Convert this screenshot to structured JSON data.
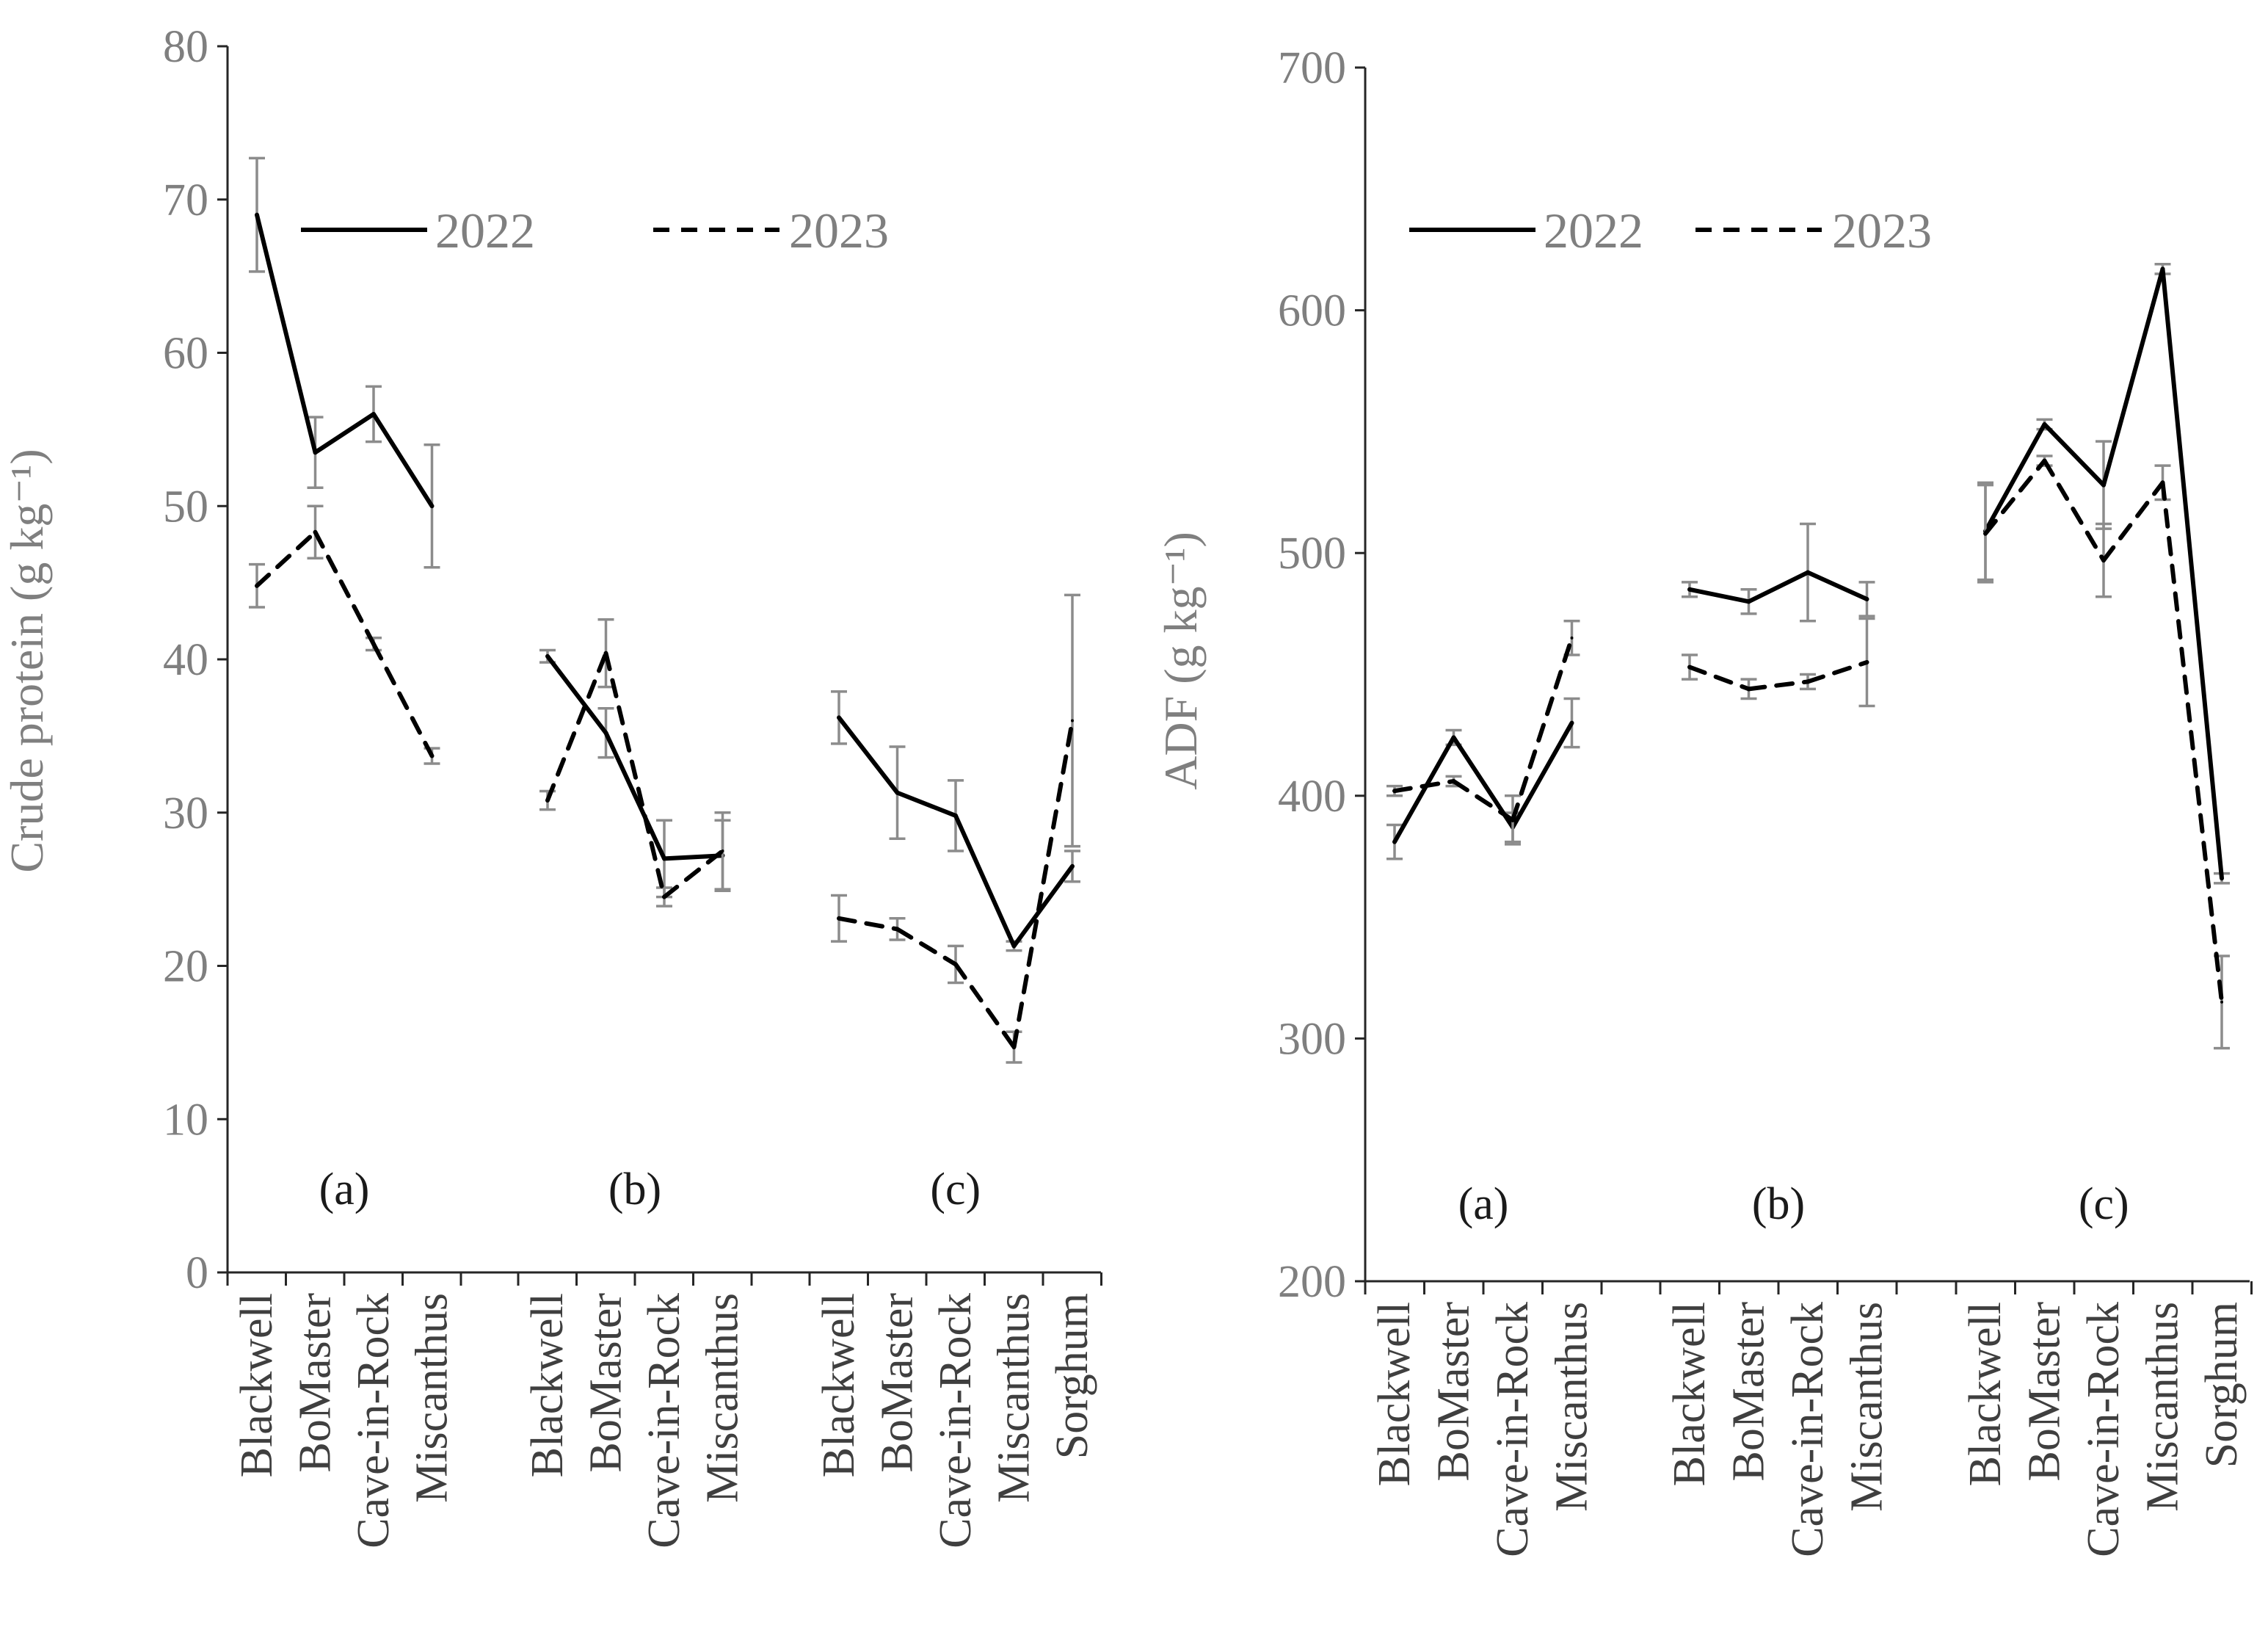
{
  "chart_data": [
    {
      "type": "line",
      "title": "",
      "ylabel": "Crude protein (g kg⁻¹)",
      "xlabel": "",
      "ylim": [
        0,
        80
      ],
      "yticks": [
        0,
        10,
        20,
        30,
        40,
        50,
        60,
        70,
        80
      ],
      "legend_position": "top",
      "groups": [
        {
          "label": "(a)",
          "categories": [
            "Blackwell",
            "BoMaster",
            "Cave-in-Rock",
            "Miscanthus"
          ],
          "series": [
            {
              "name": "2022",
              "style": "solid",
              "values": [
                69,
                53.5,
                56,
                50
              ],
              "errors": [
                3.7,
                2.3,
                1.8,
                4
              ]
            },
            {
              "name": "2023",
              "style": "dashed",
              "values": [
                44.8,
                48.3,
                41,
                33.7
              ],
              "errors": [
                1.4,
                1.7,
                0.4,
                0.5
              ]
            }
          ]
        },
        {
          "label": "(b)",
          "categories": [
            "Blackwell",
            "BoMaster",
            "Cave-in-Rock",
            "Miscanthus"
          ],
          "series": [
            {
              "name": "2022",
              "style": "solid",
              "values": [
                40.2,
                35.2,
                27,
                27.2
              ],
              "errors": [
                0.4,
                1.6,
                2.5,
                2.3
              ]
            },
            {
              "name": "2023",
              "style": "dashed",
              "values": [
                30.8,
                40.4,
                24.5,
                27.5
              ],
              "errors": [
                0.6,
                2.2,
                0.6,
                2.5
              ]
            }
          ]
        },
        {
          "label": "(c)",
          "categories": [
            "Blackwell",
            "BoMaster",
            "Cave-in-Rock",
            "Miscanthus",
            "Sorghum"
          ],
          "series": [
            {
              "name": "2022",
              "style": "solid",
              "values": [
                36.2,
                31.3,
                29.8,
                21.3,
                26.5
              ],
              "errors": [
                1.7,
                3,
                2.3,
                0.3,
                1
              ]
            },
            {
              "name": "2023",
              "style": "dashed",
              "values": [
                23.1,
                22.4,
                20.1,
                14.7,
                36
              ],
              "errors": [
                1.5,
                0.7,
                1.2,
                1,
                8.2
              ]
            }
          ]
        }
      ]
    },
    {
      "type": "line",
      "title": "",
      "ylabel": "ADF (g kg⁻¹)",
      "xlabel": "",
      "ylim": [
        200,
        700
      ],
      "yticks": [
        200,
        300,
        400,
        500,
        600,
        700
      ],
      "legend_position": "top",
      "groups": [
        {
          "label": "(a)",
          "categories": [
            "Blackwell",
            "BoMaster",
            "Cave-in-Rock",
            "Miscanthus"
          ],
          "series": [
            {
              "name": "2022",
              "style": "solid",
              "values": [
                381,
                424,
                387,
                430
              ],
              "errors": [
                7,
                3,
                6,
                10
              ]
            },
            {
              "name": "2023",
              "style": "dashed",
              "values": [
                402,
                406,
                390,
                465
              ],
              "errors": [
                2,
                2,
                10,
                7
              ]
            }
          ]
        },
        {
          "label": "(b)",
          "categories": [
            "Blackwell",
            "BoMaster",
            "Cave-in-Rock",
            "Miscanthus"
          ],
          "series": [
            {
              "name": "2022",
              "style": "solid",
              "values": [
                485,
                480,
                492,
                481
              ],
              "errors": [
                3,
                5,
                20,
                7
              ]
            },
            {
              "name": "2023",
              "style": "dashed",
              "values": [
                453,
                444,
                447,
                455
              ],
              "errors": [
                5,
                4,
                3,
                18
              ]
            }
          ]
        },
        {
          "label": "(c)",
          "categories": [
            "Blackwell",
            "BoMaster",
            "Cave-in-Rock",
            "Miscanthus",
            "Sorghum"
          ],
          "series": [
            {
              "name": "2022",
              "style": "solid",
              "values": [
                509,
                553,
                528,
                617,
                366
              ],
              "errors": [
                20,
                2,
                18,
                2,
                2
              ]
            },
            {
              "name": "2023",
              "style": "dashed",
              "values": [
                508,
                538,
                497,
                529,
                315
              ],
              "errors": [
                20,
                2,
                15,
                7,
                19
              ]
            }
          ]
        }
      ]
    }
  ]
}
